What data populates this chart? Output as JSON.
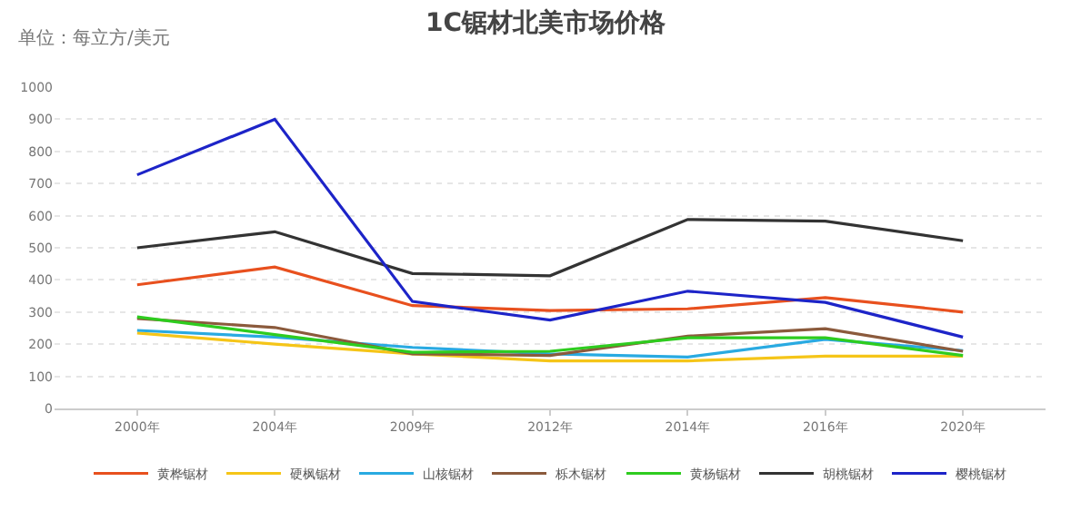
{
  "chart_data": {
    "type": "line",
    "title": "1C锯材北美市场价格",
    "subtitle": "单位：每立方/美元",
    "categories": [
      "2000年",
      "2004年",
      "2009年",
      "2012年",
      "2014年",
      "2016年",
      "2020年"
    ],
    "series": [
      {
        "name": "黄桦锯材",
        "color": "#e8501e",
        "values": [
          385,
          440,
          320,
          305,
          310,
          345,
          300
        ]
      },
      {
        "name": "硬枫锯材",
        "color": "#f5c518",
        "values": [
          235,
          200,
          170,
          148,
          148,
          163,
          163
        ]
      },
      {
        "name": "山核锯材",
        "color": "#29aae1",
        "values": [
          243,
          222,
          190,
          170,
          160,
          215,
          180
        ]
      },
      {
        "name": "栎木锯材",
        "color": "#8b5a3c",
        "values": [
          280,
          252,
          170,
          165,
          225,
          248,
          178
        ]
      },
      {
        "name": "黄杨锯材",
        "color": "#2ecc1f",
        "values": [
          285,
          230,
          175,
          178,
          220,
          220,
          165
        ]
      },
      {
        "name": "胡桃锯材",
        "color": "#333333",
        "values": [
          500,
          550,
          420,
          413,
          588,
          583,
          522
        ]
      },
      {
        "name": "樱桃锯材",
        "color": "#1d24c8",
        "values": [
          727,
          900,
          333,
          275,
          365,
          330,
          222
        ]
      }
    ],
    "ylim": [
      0,
      1000
    ],
    "yticks": [
      0,
      100,
      200,
      300,
      400,
      500,
      600,
      700,
      800,
      900,
      1000
    ],
    "grid": "y",
    "legend": "bottom",
    "marker": "none",
    "line_style": "solid"
  }
}
